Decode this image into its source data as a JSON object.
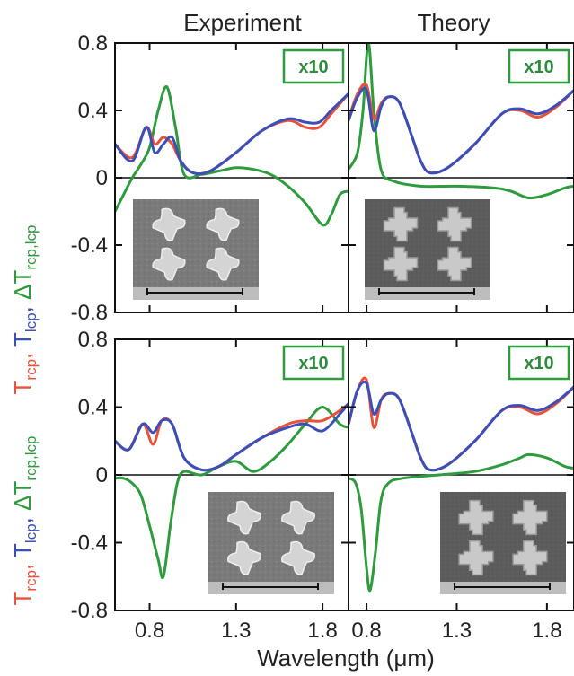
{
  "columns": [
    {
      "title": "Experiment"
    },
    {
      "title": "Theory"
    }
  ],
  "ylabel_parts": {
    "t1": "T",
    "s1": "rcp",
    "sep1": ", ",
    "t2": "T",
    "s2": "lcp",
    "sep2": ", ",
    "t3": "ΔT",
    "s3": "rcp,lcp"
  },
  "xlabel": "Wavelength (μm)",
  "badge_text": "x10",
  "colors": {
    "rcp": "#e8513a",
    "lcp": "#3a4fb8",
    "delta": "#2e9b3e",
    "frame": "#111111"
  },
  "chart_data": [
    {
      "type": "line",
      "panel": "top-left",
      "xlim": [
        0.6,
        1.95
      ],
      "ylim": [
        -0.8,
        0.8
      ],
      "yticks": [
        "0.8",
        "0.4",
        "0",
        "-0.4",
        "-0.8"
      ],
      "xticks": [],
      "badge": "x10",
      "inset": "experiment-micrograph",
      "series": [
        {
          "key": "rcp",
          "x": [
            0.6,
            0.7,
            0.78,
            0.83,
            0.88,
            0.93,
            0.98,
            1.05,
            1.15,
            1.3,
            1.45,
            1.6,
            1.7,
            1.78,
            1.85,
            1.95
          ],
          "y": [
            0.2,
            0.12,
            0.3,
            0.2,
            0.24,
            0.2,
            0.1,
            0.03,
            0.04,
            0.15,
            0.28,
            0.34,
            0.3,
            0.3,
            0.38,
            0.5
          ]
        },
        {
          "key": "lcp",
          "x": [
            0.6,
            0.7,
            0.78,
            0.83,
            0.88,
            0.93,
            0.98,
            1.05,
            1.15,
            1.3,
            1.45,
            1.6,
            1.7,
            1.78,
            1.85,
            1.95
          ],
          "y": [
            0.2,
            0.1,
            0.3,
            0.15,
            0.2,
            0.24,
            0.1,
            0.03,
            0.04,
            0.15,
            0.28,
            0.35,
            0.33,
            0.33,
            0.4,
            0.5
          ]
        },
        {
          "key": "delta",
          "x": [
            0.6,
            0.65,
            0.7,
            0.75,
            0.8,
            0.85,
            0.9,
            0.95,
            1.0,
            1.1,
            1.2,
            1.3,
            1.4,
            1.5,
            1.6,
            1.7,
            1.8,
            1.85,
            1.9,
            1.95
          ],
          "y": [
            -0.2,
            -0.1,
            0.0,
            0.08,
            0.18,
            0.4,
            0.54,
            0.3,
            0.02,
            0.02,
            0.04,
            0.06,
            0.05,
            0.02,
            -0.05,
            -0.15,
            -0.28,
            -0.22,
            -0.1,
            -0.08
          ]
        }
      ]
    },
    {
      "type": "line",
      "panel": "top-right",
      "xlim": [
        0.7,
        1.95
      ],
      "ylim": [
        -0.8,
        0.8
      ],
      "yticks": [],
      "xticks": [],
      "badge": "x10",
      "inset": "theory-render",
      "series": [
        {
          "key": "rcp",
          "x": [
            0.7,
            0.75,
            0.8,
            0.84,
            0.88,
            0.92,
            0.98,
            1.05,
            1.1,
            1.15,
            1.25,
            1.4,
            1.55,
            1.65,
            1.75,
            1.85,
            1.95
          ],
          "y": [
            0.35,
            0.5,
            0.55,
            0.35,
            0.44,
            0.48,
            0.45,
            0.25,
            0.1,
            0.03,
            0.06,
            0.2,
            0.38,
            0.4,
            0.36,
            0.42,
            0.52
          ]
        },
        {
          "key": "lcp",
          "x": [
            0.7,
            0.75,
            0.8,
            0.84,
            0.88,
            0.92,
            0.98,
            1.05,
            1.1,
            1.15,
            1.25,
            1.4,
            1.55,
            1.65,
            1.75,
            1.85,
            1.95
          ],
          "y": [
            0.34,
            0.48,
            0.52,
            0.28,
            0.42,
            0.48,
            0.45,
            0.25,
            0.1,
            0.03,
            0.06,
            0.2,
            0.38,
            0.41,
            0.38,
            0.43,
            0.52
          ]
        },
        {
          "key": "delta",
          "x": [
            0.7,
            0.75,
            0.78,
            0.81,
            0.84,
            0.88,
            0.95,
            1.1,
            1.3,
            1.5,
            1.6,
            1.7,
            1.8,
            1.9,
            1.95
          ],
          "y": [
            0.05,
            0.15,
            0.4,
            0.8,
            0.4,
            0.05,
            -0.02,
            -0.05,
            -0.05,
            -0.06,
            -0.08,
            -0.12,
            -0.1,
            -0.06,
            -0.05
          ]
        }
      ]
    },
    {
      "type": "line",
      "panel": "bottom-left",
      "xlim": [
        0.6,
        1.95
      ],
      "ylim": [
        -0.8,
        0.8
      ],
      "yticks": [
        "0.8",
        "0.4",
        "0",
        "-0.4",
        "-0.8"
      ],
      "xticks": [
        "0.8",
        "1.3",
        "1.8"
      ],
      "badge": "x10",
      "inset": "experiment-micrograph",
      "series": [
        {
          "key": "rcp",
          "x": [
            0.6,
            0.68,
            0.76,
            0.82,
            0.87,
            0.93,
            1.0,
            1.1,
            1.2,
            1.3,
            1.45,
            1.6,
            1.7,
            1.8,
            1.9,
            1.95
          ],
          "y": [
            0.2,
            0.15,
            0.3,
            0.18,
            0.32,
            0.3,
            0.1,
            0.03,
            0.05,
            0.12,
            0.22,
            0.3,
            0.32,
            0.32,
            0.38,
            0.42
          ]
        },
        {
          "key": "lcp",
          "x": [
            0.6,
            0.68,
            0.76,
            0.82,
            0.87,
            0.93,
            1.0,
            1.1,
            1.2,
            1.3,
            1.45,
            1.6,
            1.7,
            1.8,
            1.9,
            1.95
          ],
          "y": [
            0.2,
            0.15,
            0.3,
            0.25,
            0.32,
            0.3,
            0.1,
            0.03,
            0.05,
            0.12,
            0.22,
            0.28,
            0.3,
            0.26,
            0.36,
            0.42
          ]
        },
        {
          "key": "delta",
          "x": [
            0.6,
            0.65,
            0.7,
            0.75,
            0.8,
            0.85,
            0.88,
            0.92,
            0.96,
            1.0,
            1.1,
            1.2,
            1.3,
            1.4,
            1.5,
            1.6,
            1.7,
            1.8,
            1.9,
            1.95
          ],
          "y": [
            -0.02,
            -0.02,
            -0.05,
            -0.12,
            -0.3,
            -0.5,
            -0.6,
            -0.3,
            -0.05,
            0.02,
            0.0,
            0.05,
            0.08,
            0.02,
            0.08,
            0.18,
            0.3,
            0.4,
            0.3,
            0.28
          ]
        }
      ]
    },
    {
      "type": "line",
      "panel": "bottom-right",
      "xlim": [
        0.7,
        1.95
      ],
      "ylim": [
        -0.8,
        0.8
      ],
      "yticks": [],
      "xticks": [
        "0.8",
        "1.3",
        "1.8"
      ],
      "badge": "x10",
      "inset": "theory-render",
      "series": [
        {
          "key": "rcp",
          "x": [
            0.7,
            0.75,
            0.8,
            0.84,
            0.88,
            0.92,
            0.98,
            1.05,
            1.1,
            1.15,
            1.25,
            1.4,
            1.55,
            1.65,
            1.75,
            1.85,
            1.95
          ],
          "y": [
            0.3,
            0.5,
            0.56,
            0.28,
            0.44,
            0.48,
            0.45,
            0.25,
            0.1,
            0.03,
            0.06,
            0.2,
            0.38,
            0.4,
            0.36,
            0.42,
            0.52
          ]
        },
        {
          "key": "lcp",
          "x": [
            0.7,
            0.75,
            0.8,
            0.84,
            0.88,
            0.92,
            0.98,
            1.05,
            1.1,
            1.15,
            1.25,
            1.4,
            1.55,
            1.65,
            1.75,
            1.85,
            1.95
          ],
          "y": [
            0.3,
            0.5,
            0.54,
            0.36,
            0.44,
            0.48,
            0.45,
            0.25,
            0.1,
            0.03,
            0.06,
            0.2,
            0.38,
            0.41,
            0.38,
            0.43,
            0.52
          ]
        },
        {
          "key": "delta",
          "x": [
            0.7,
            0.74,
            0.77,
            0.8,
            0.82,
            0.85,
            0.88,
            0.92,
            1.0,
            1.2,
            1.4,
            1.55,
            1.65,
            1.7,
            1.8,
            1.9,
            1.95
          ],
          "y": [
            -0.02,
            -0.05,
            -0.2,
            -0.55,
            -0.68,
            -0.45,
            -0.15,
            -0.05,
            -0.02,
            0.0,
            0.02,
            0.06,
            0.1,
            0.12,
            0.1,
            0.05,
            0.04
          ]
        }
      ]
    }
  ]
}
